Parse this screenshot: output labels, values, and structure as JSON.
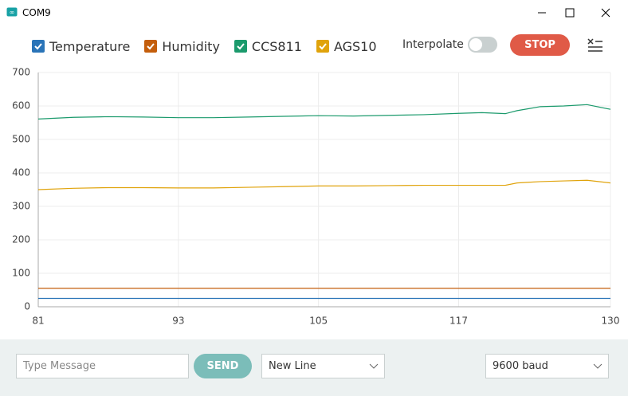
{
  "window": {
    "title": "COM9"
  },
  "toolbar": {
    "interpolate_label": "Interpolate",
    "stop_button": "STOP"
  },
  "chart_data": {
    "type": "line",
    "x": [
      81,
      84,
      87,
      90,
      93,
      96,
      99,
      102,
      105,
      108,
      111,
      114,
      117,
      119,
      121,
      122,
      123,
      124,
      126,
      128,
      130
    ],
    "series": [
      {
        "name": "Temperature",
        "color": "#2a74b8",
        "values": [
          25,
          25,
          25,
          25,
          25,
          25,
          25,
          25,
          25,
          25,
          25,
          25,
          25,
          25,
          25,
          25,
          25,
          25,
          25,
          25,
          25
        ]
      },
      {
        "name": "Humidity",
        "color": "#c45e0c",
        "values": [
          55,
          55,
          55,
          55,
          55,
          55,
          55,
          55,
          55,
          55,
          55,
          55,
          55,
          55,
          55,
          55,
          55,
          55,
          55,
          55,
          55
        ]
      },
      {
        "name": "CCS811",
        "color": "#1b9a6c",
        "values": [
          561,
          566,
          568,
          567,
          565,
          565,
          567,
          569,
          571,
          570,
          572,
          574,
          578,
          580,
          577,
          586,
          592,
          598,
          600,
          604,
          590
        ]
      },
      {
        "name": "AGS10",
        "color": "#e0a30b",
        "values": [
          350,
          354,
          356,
          356,
          355,
          355,
          357,
          359,
          361,
          361,
          362,
          363,
          363,
          363,
          363,
          370,
          372,
          374,
          376,
          378,
          370
        ]
      }
    ],
    "xlim": [
      81,
      130
    ],
    "xticks": [
      81,
      93,
      105,
      117,
      130
    ],
    "ylim": [
      0,
      700
    ],
    "yticks": [
      0,
      100,
      200,
      300,
      400,
      500,
      600,
      700
    ],
    "grid": true
  },
  "footer": {
    "message_placeholder": "Type Message",
    "send_button": "SEND",
    "line_ending": "New Line",
    "baud_rate": "9600 baud"
  }
}
